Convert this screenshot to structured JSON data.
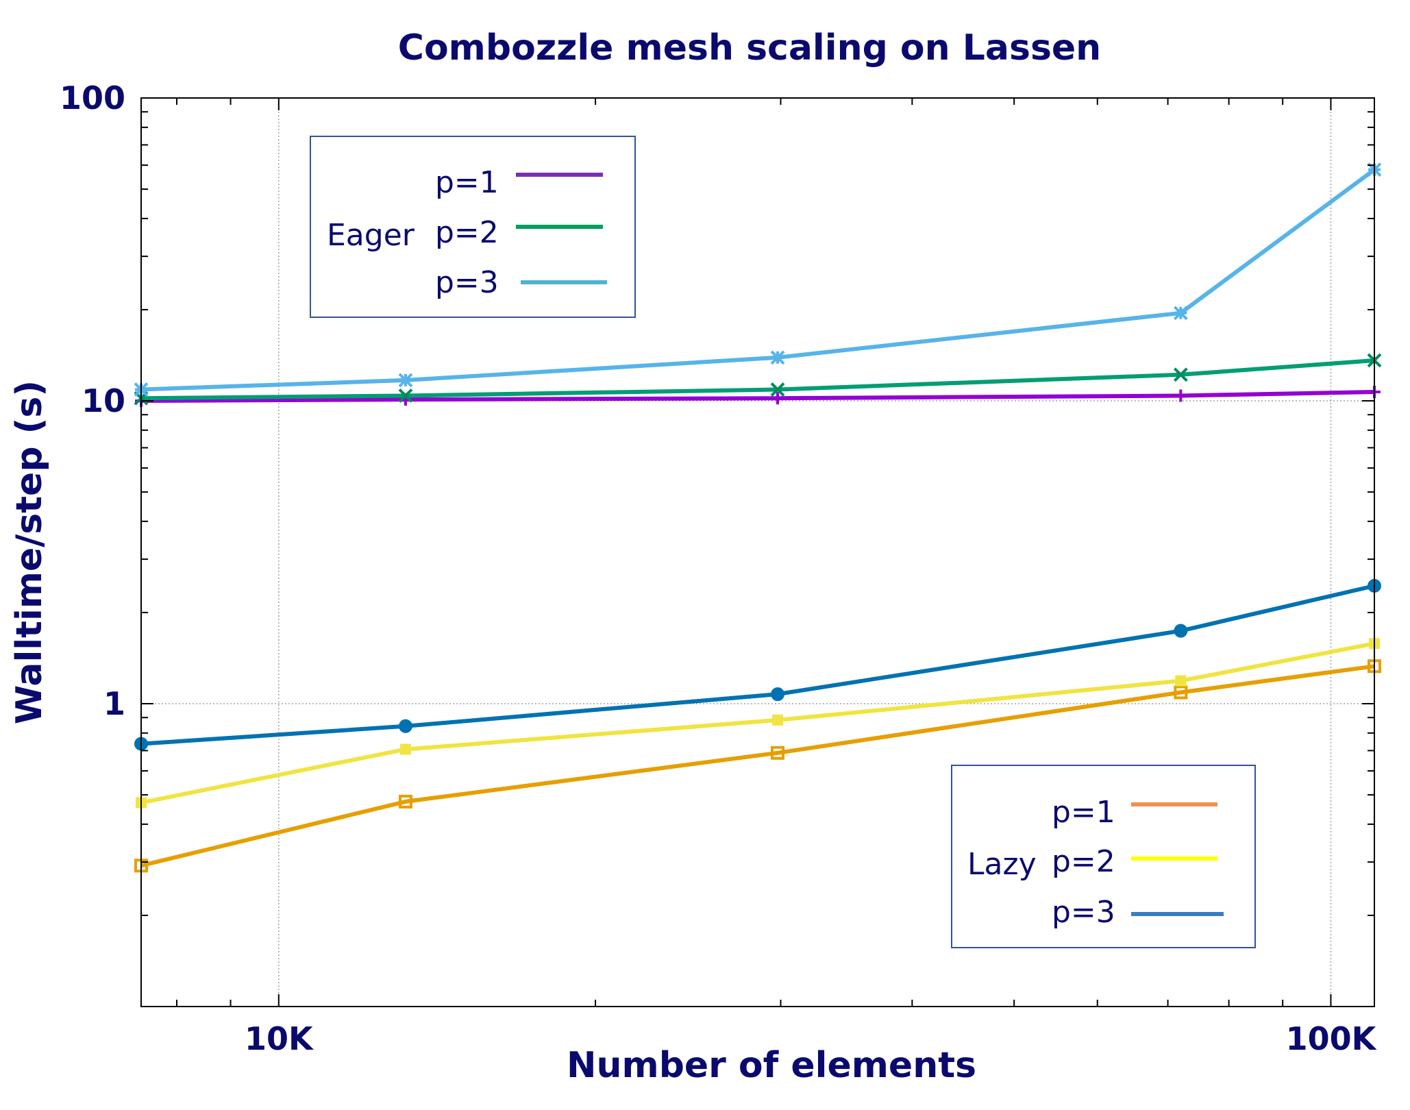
{
  "chart_data": {
    "type": "line",
    "title": "Combozzle mesh scaling on Lassen",
    "xlabel": "Number of elements",
    "ylabel": "Walltime/step (s)",
    "xscale": "log",
    "yscale": "log",
    "xlim": [
      7400,
      110000
    ],
    "ylim": [
      0.1,
      100
    ],
    "xticks": [
      {
        "value": 10000,
        "label": "10K"
      },
      {
        "value": 100000,
        "label": "100K"
      }
    ],
    "yticks": [
      {
        "value": 1,
        "label": "1"
      },
      {
        "value": 10,
        "label": "10"
      },
      {
        "value": 100,
        "label": "100"
      }
    ],
    "grid": true,
    "x": [
      7400,
      13200,
      29800,
      72000,
      110000
    ],
    "legends": [
      {
        "group": "Eager",
        "position": "top-left",
        "entries": [
          "p=1",
          "p=2",
          "p=3"
        ]
      },
      {
        "group": "Lazy",
        "position": "bottom-right",
        "entries": [
          "p=1",
          "p=2",
          "p=3"
        ]
      }
    ],
    "series": [
      {
        "name": "p=1",
        "group": "Eager",
        "color": "#9400d3",
        "line_color": "#9400d3",
        "legend_color": "#7b2fb0",
        "marker": "plus",
        "values": [
          10.0,
          10.1,
          10.2,
          10.4,
          10.7
        ]
      },
      {
        "name": "p=2",
        "group": "Eager",
        "color": "#008a5e",
        "line_color": "#009e73",
        "legend_color": "#00a060",
        "marker": "x",
        "values": [
          10.2,
          10.4,
          10.9,
          12.2,
          13.6
        ]
      },
      {
        "name": "p=3",
        "group": "Eager",
        "color": "#56b4e9",
        "line_color": "#56b4e9",
        "legend_color": "#4fb3d0",
        "marker": "star",
        "values": [
          10.9,
          11.7,
          13.9,
          19.5,
          58.0
        ]
      },
      {
        "name": "p=1",
        "group": "Lazy",
        "color": "#e69f00",
        "line_color": "#e69f00",
        "legend_color": "#f0904a",
        "marker": "square",
        "values": [
          0.292,
          0.475,
          0.688,
          1.09,
          1.33
        ]
      },
      {
        "name": "p=2",
        "group": "Lazy",
        "color": "#f0e442",
        "line_color": "#f0e442",
        "legend_color": "#ffff00",
        "marker": "square-filled",
        "values": [
          0.471,
          0.707,
          0.883,
          1.19,
          1.58
        ]
      },
      {
        "name": "p=3",
        "group": "Lazy",
        "color": "#0072b2",
        "line_color": "#0072b2",
        "legend_color": "#3a7dbf",
        "marker": "circle",
        "values": [
          0.737,
          0.843,
          1.075,
          1.74,
          2.45
        ]
      }
    ]
  }
}
